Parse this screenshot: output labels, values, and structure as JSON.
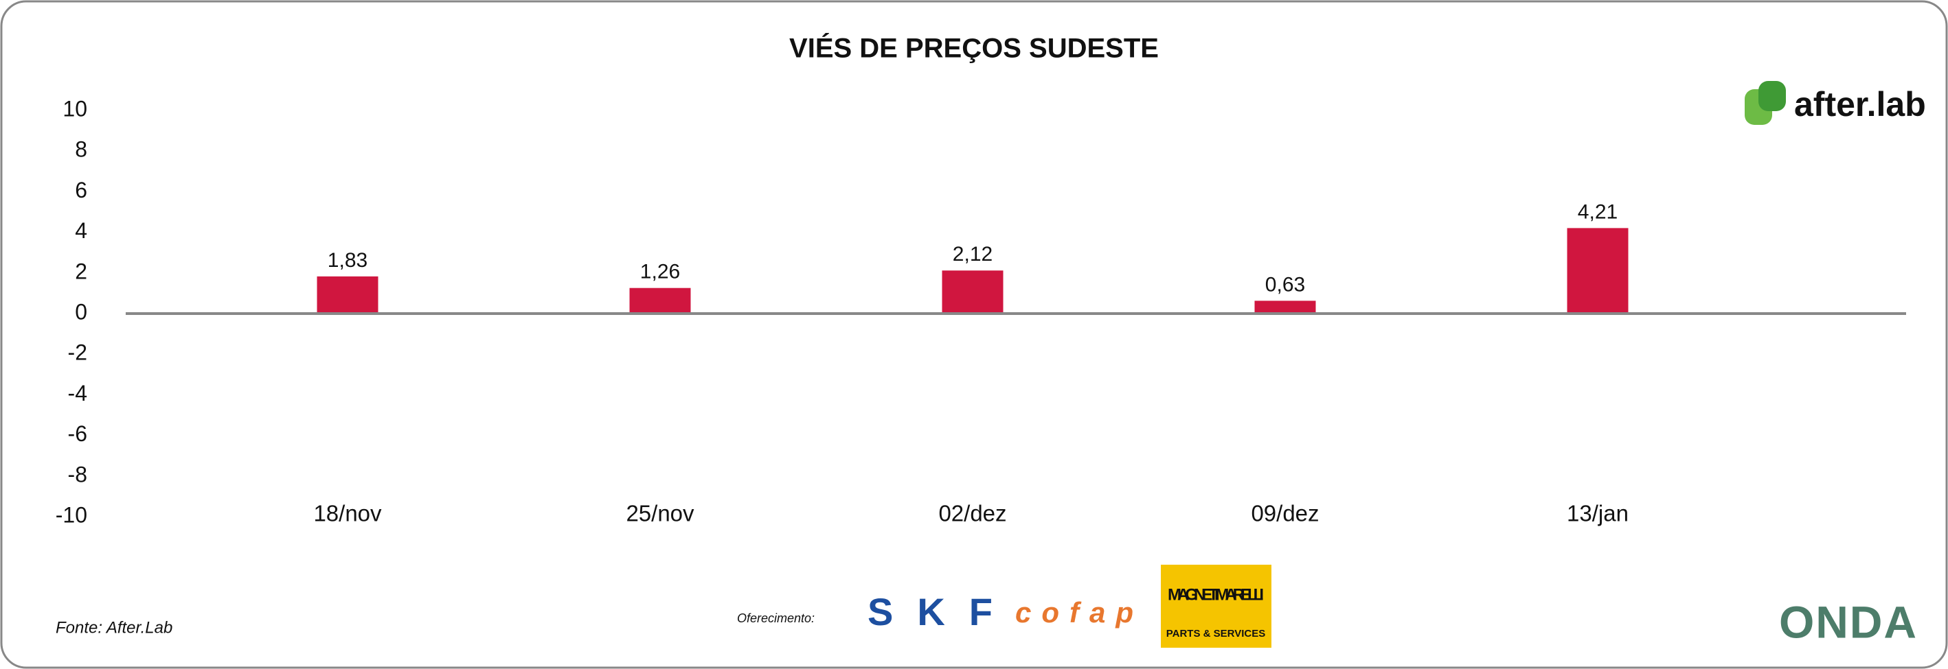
{
  "chart_data": {
    "type": "bar",
    "title": "VIÉS DE PREÇOS SUDESTE",
    "categories": [
      "18/nov",
      "25/nov",
      "02/dez",
      "09/dez",
      "13/jan"
    ],
    "values": [
      1.83,
      1.26,
      2.12,
      0.63,
      4.21
    ],
    "value_labels": [
      "1,83",
      "1,26",
      "2,12",
      "0,63",
      "4,21"
    ],
    "color": "#d0163f",
    "ylim": [
      -10,
      10
    ],
    "yticks": [
      -10,
      -8,
      -6,
      -4,
      -2,
      0,
      2,
      4,
      6,
      8,
      10
    ]
  },
  "brand": "after.lab",
  "footer": {
    "source": "Fonte: After.Lab",
    "sponsor_label": "Oferecimento:",
    "sponsors": [
      "SKF",
      "cofap",
      "MAGNETI MARELLI",
      "PARTS & SERVICES"
    ],
    "partner": "ONDA"
  }
}
